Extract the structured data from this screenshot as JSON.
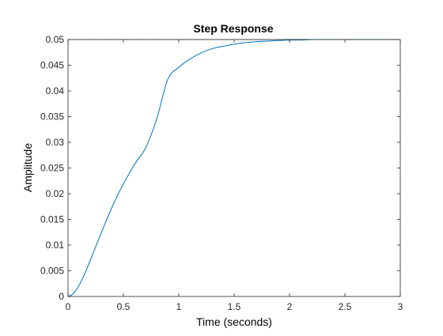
{
  "chart_data": {
    "type": "line",
    "title": "Step Response",
    "xlabel": "Time (seconds)",
    "ylabel": "Amplitude",
    "xlim": [
      0,
      3
    ],
    "ylim": [
      0,
      0.05
    ],
    "xticks": [
      "0",
      "0.5",
      "1",
      "1.5",
      "2",
      "2.5",
      "3"
    ],
    "yticks": [
      "0",
      "0.005",
      "0.01",
      "0.015",
      "0.02",
      "0.025",
      "0.03",
      "0.035",
      "0.04",
      "0.045",
      "0.05"
    ],
    "grid": false,
    "steady_state": 0.05,
    "series": [
      {
        "color": "#0072BD",
        "x": [
          0,
          0.05,
          0.1,
          0.15,
          0.2,
          0.25,
          0.3,
          0.35,
          0.4,
          0.45,
          0.5,
          0.6,
          0.7,
          0.8,
          0.9,
          1.0,
          1.1,
          1.2,
          1.3,
          1.4,
          1.5,
          1.6,
          1.7,
          1.8,
          1.9,
          2.0,
          2.1,
          2.2,
          2.3,
          2.5,
          2.7,
          3.0
        ],
        "values": [
          0,
          0.0006,
          0.0022,
          0.0044,
          0.007,
          0.0097,
          0.0124,
          0.015,
          0.0175,
          0.0198,
          0.0219,
          0.0257,
          0.0289,
          0.0345,
          0.0422,
          0.0446,
          0.0462,
          0.0474,
          0.0482,
          0.0487,
          0.0491,
          0.0494,
          0.0496,
          0.0497,
          0.0498,
          0.0499,
          0.0499,
          0.05,
          0.05,
          0.05,
          0.05,
          0.05
        ]
      }
    ]
  }
}
